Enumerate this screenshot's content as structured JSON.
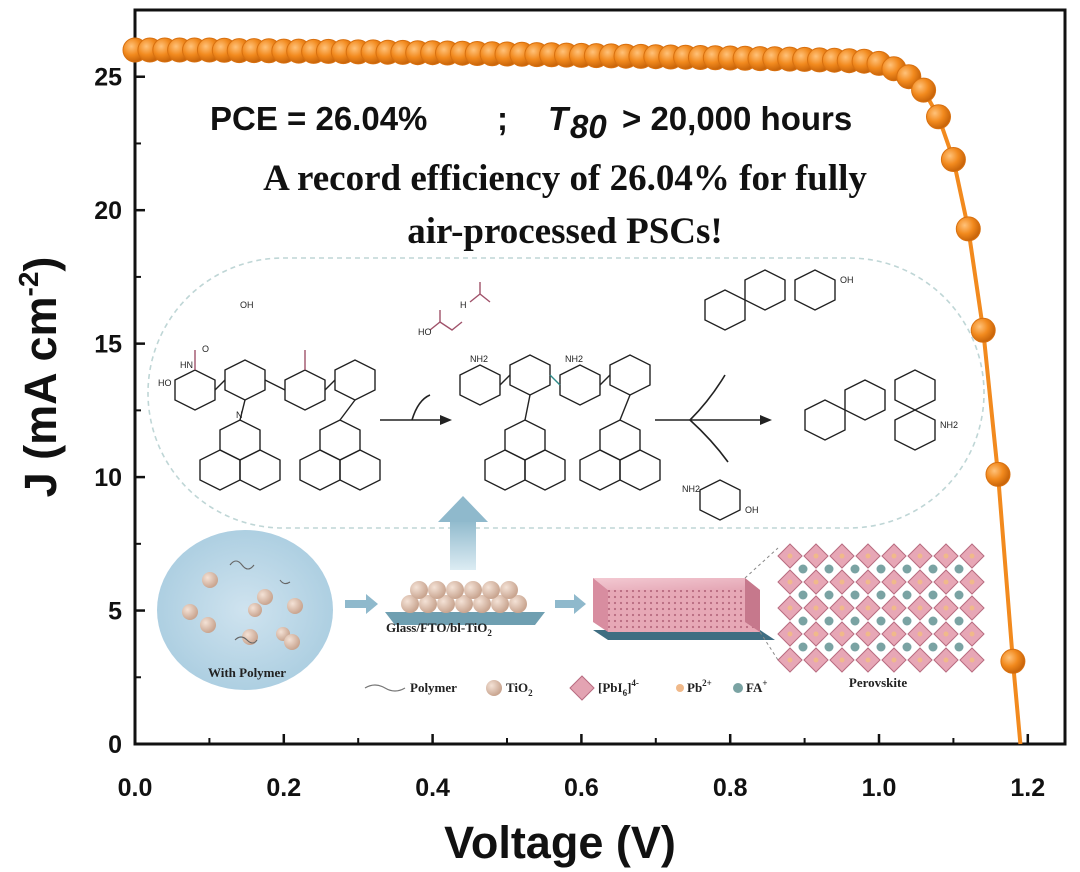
{
  "chart_data": {
    "type": "scatter",
    "xlabel": "Voltage (V)",
    "ylabel_main": "J (mA cm",
    "ylabel_sup": "-2",
    "ylabel_close": ")",
    "xlim": [
      0.0,
      1.25
    ],
    "ylim": [
      0,
      27.5
    ],
    "xticks": [
      "0.0",
      "0.2",
      "0.4",
      "0.6",
      "0.8",
      "1.0",
      "1.2"
    ],
    "yticks": [
      "0",
      "5",
      "10",
      "15",
      "20",
      "25"
    ],
    "grid": false,
    "series": [
      {
        "color": "#f28a1e",
        "x": [
          0.0,
          0.02,
          0.04,
          0.06,
          0.08,
          0.1,
          0.12,
          0.14,
          0.16,
          0.18,
          0.2,
          0.22,
          0.24,
          0.26,
          0.28,
          0.3,
          0.32,
          0.34,
          0.36,
          0.38,
          0.4,
          0.42,
          0.44,
          0.46,
          0.48,
          0.5,
          0.52,
          0.54,
          0.56,
          0.58,
          0.6,
          0.62,
          0.64,
          0.66,
          0.68,
          0.7,
          0.72,
          0.74,
          0.76,
          0.78,
          0.8,
          0.82,
          0.84,
          0.86,
          0.88,
          0.9,
          0.92,
          0.94,
          0.96,
          0.98,
          1.0,
          1.02,
          1.04,
          1.06,
          1.08,
          1.1,
          1.12,
          1.14,
          1.16,
          1.18
        ],
        "y": [
          26.0,
          26.0,
          26.0,
          26.0,
          26.0,
          26.0,
          25.99,
          25.98,
          25.98,
          25.97,
          25.96,
          25.96,
          25.95,
          25.95,
          25.94,
          25.93,
          25.93,
          25.92,
          25.91,
          25.9,
          25.9,
          25.89,
          25.88,
          25.87,
          25.86,
          25.85,
          25.84,
          25.83,
          25.82,
          25.81,
          25.8,
          25.79,
          25.78,
          25.77,
          25.76,
          25.75,
          25.74,
          25.73,
          25.72,
          25.71,
          25.7,
          25.69,
          25.68,
          25.67,
          25.66,
          25.65,
          25.63,
          25.62,
          25.6,
          25.58,
          25.5,
          25.3,
          25.0,
          24.5,
          23.5,
          21.9,
          19.3,
          15.5,
          10.1,
          3.1
        ]
      }
    ],
    "annotation": {
      "pce": "PCE = 26.04%",
      "sep": ";",
      "t80_T": "T",
      "t80_sub": "80",
      "t80_rest": "> 20,000 hours",
      "record_line1": "A record efficiency of 26.04% for fully",
      "record_line2": "air-processed PSCs!"
    }
  },
  "inset": {
    "step1_label": "With Polymer",
    "step2_label_a": "Glass/FTO/bl-TiO",
    "step2_label_sub": "2",
    "step4_label": "Perovskite",
    "legend": {
      "polymer": "Polymer",
      "tio2_a": "TiO",
      "tio2_sub": "2",
      "pbi6_a": "[PbI",
      "pbi6_sub": "6",
      "pbi6_b": "]",
      "pbi6_sup": "4-",
      "pb_a": "Pb",
      "pb_sup": "2+",
      "fa_a": "FA",
      "fa_sup": "+"
    },
    "chem_labels": [
      "HN",
      "O",
      "OH",
      "HO",
      "NH2",
      "N",
      "H"
    ]
  }
}
